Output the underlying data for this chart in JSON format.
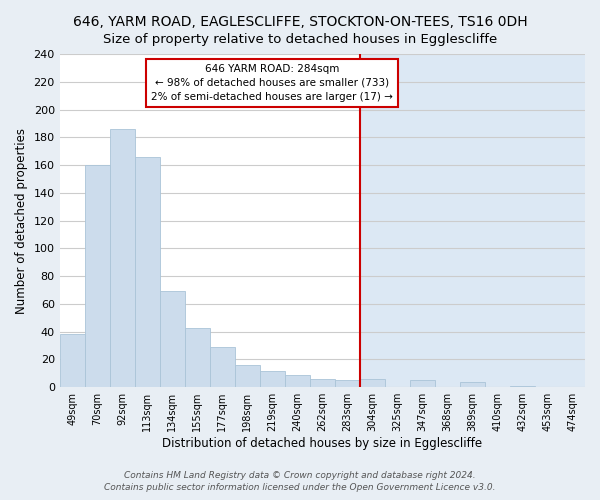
{
  "title": "646, YARM ROAD, EAGLESCLIFFE, STOCKTON-ON-TEES, TS16 0DH",
  "subtitle": "Size of property relative to detached houses in Egglescliffe",
  "xlabel": "Distribution of detached houses by size in Egglescliffe",
  "ylabel": "Number of detached properties",
  "bar_labels": [
    "49sqm",
    "70sqm",
    "92sqm",
    "113sqm",
    "134sqm",
    "155sqm",
    "177sqm",
    "198sqm",
    "219sqm",
    "240sqm",
    "262sqm",
    "283sqm",
    "304sqm",
    "325sqm",
    "347sqm",
    "368sqm",
    "389sqm",
    "410sqm",
    "432sqm",
    "453sqm",
    "474sqm"
  ],
  "bar_values": [
    38,
    160,
    186,
    166,
    69,
    43,
    29,
    16,
    12,
    9,
    6,
    5,
    6,
    0,
    5,
    0,
    4,
    0,
    1,
    0,
    0
  ],
  "bar_color": "#ccdcec",
  "bar_edge_color": "#aac4d8",
  "vline_index": 11.5,
  "vline_color": "#cc0000",
  "annotation_title": "646 YARM ROAD: 284sqm",
  "annotation_line1": "← 98% of detached houses are smaller (733)",
  "annotation_line2": "2% of semi-detached houses are larger (17) →",
  "annotation_box_facecolor": "white",
  "annotation_box_edgecolor": "#cc0000",
  "ylim": [
    0,
    240
  ],
  "yticks": [
    0,
    20,
    40,
    60,
    80,
    100,
    120,
    140,
    160,
    180,
    200,
    220,
    240
  ],
  "plot_bg_left": "#ffffff",
  "plot_bg_right": "#dce8f4",
  "outer_bg": "#e8eef4",
  "grid_color": "#cccccc",
  "title_fontsize": 10,
  "axis_fontsize": 8.5,
  "tick_fontsize": 7,
  "footer1": "Contains HM Land Registry data © Crown copyright and database right 2024.",
  "footer2": "Contains public sector information licensed under the Open Government Licence v3.0.",
  "footer_fontsize": 6.5
}
